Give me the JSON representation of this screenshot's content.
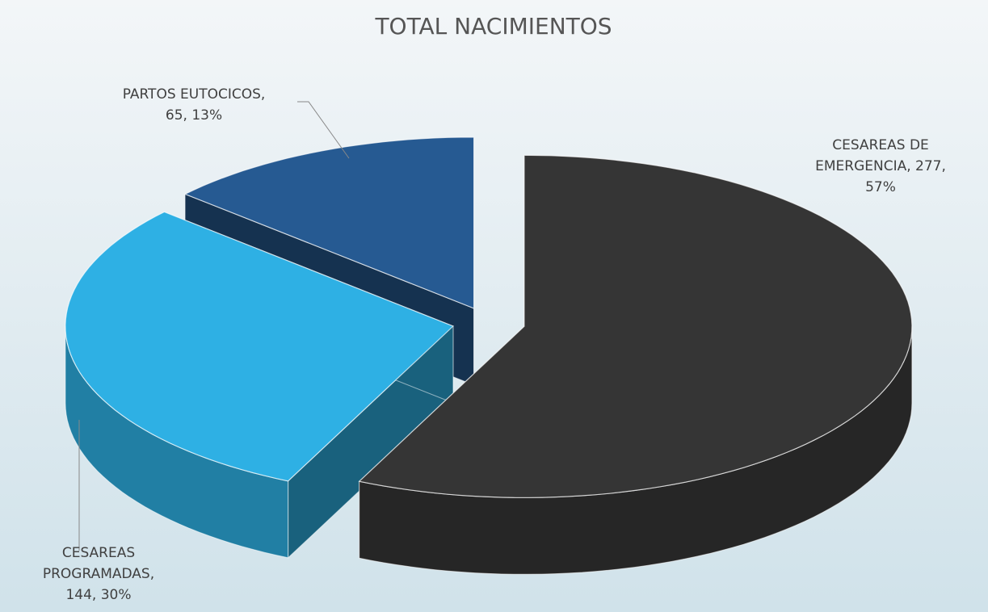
{
  "chart_data": {
    "type": "pie3d",
    "title": "TOTAL NACIMIENTOS",
    "values": [
      277,
      144,
      65
    ],
    "value_labels": [
      "CESAREAS DE EMERGENCIA, 277, 57%",
      "CESAREAS PROGRAMADAS, 144, 30%",
      "PARTOS EUTOCICOS, 65, 13%"
    ],
    "colors": [
      "#353535",
      "#2eb0e4",
      "#265a92"
    ]
  }
}
